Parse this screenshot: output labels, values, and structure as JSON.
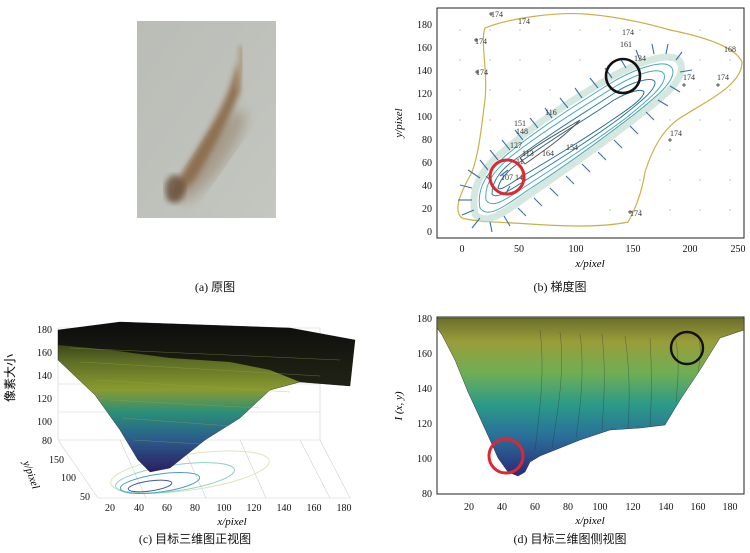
{
  "captions": {
    "a": "(a) 原图",
    "b": "(b) 梯度图",
    "c": "(c) 目标三维图正视图",
    "d": "(d) 目标三维图侧视图"
  },
  "panel_b": {
    "xlabel": "x/pixel",
    "ylabel": "y/pixel",
    "xticks": [
      "0",
      "50",
      "100",
      "150",
      "200",
      "250"
    ],
    "yticks": [
      "0",
      "20",
      "40",
      "60",
      "80",
      "100",
      "120",
      "140",
      "160",
      "180"
    ],
    "contour_labels": [
      "174",
      "174",
      "174",
      "174",
      "174",
      "174",
      "174",
      "174",
      "174",
      "161",
      "134",
      "168",
      "116",
      "151",
      "148",
      "127",
      "113",
      "164",
      "154",
      "107",
      "141"
    ]
  },
  "panel_c": {
    "zlabel": "像素大小",
    "ylabel": "y/pixel",
    "xlabel": "x/pixel",
    "zticks": [
      "180",
      "160",
      "140",
      "120",
      "100",
      "80"
    ],
    "yticks": [
      "50",
      "100",
      "150"
    ],
    "xticks": [
      "20",
      "40",
      "60",
      "80",
      "100",
      "120",
      "140",
      "160",
      "180"
    ]
  },
  "panel_d": {
    "ylabel": "I (x, y)",
    "xlabel": "x/pixel",
    "yticks": [
      "180",
      "160",
      "140",
      "120",
      "100",
      "80"
    ],
    "xticks": [
      "20",
      "40",
      "60",
      "80",
      "100",
      "120",
      "140",
      "160",
      "180"
    ]
  },
  "colors": {
    "red_circle": "#e0262f",
    "black_circle": "#111111",
    "contour_gold": "#c9b14a",
    "contour_teal": "#4aa8b8",
    "arrow_blue": "#3c6fa8"
  }
}
